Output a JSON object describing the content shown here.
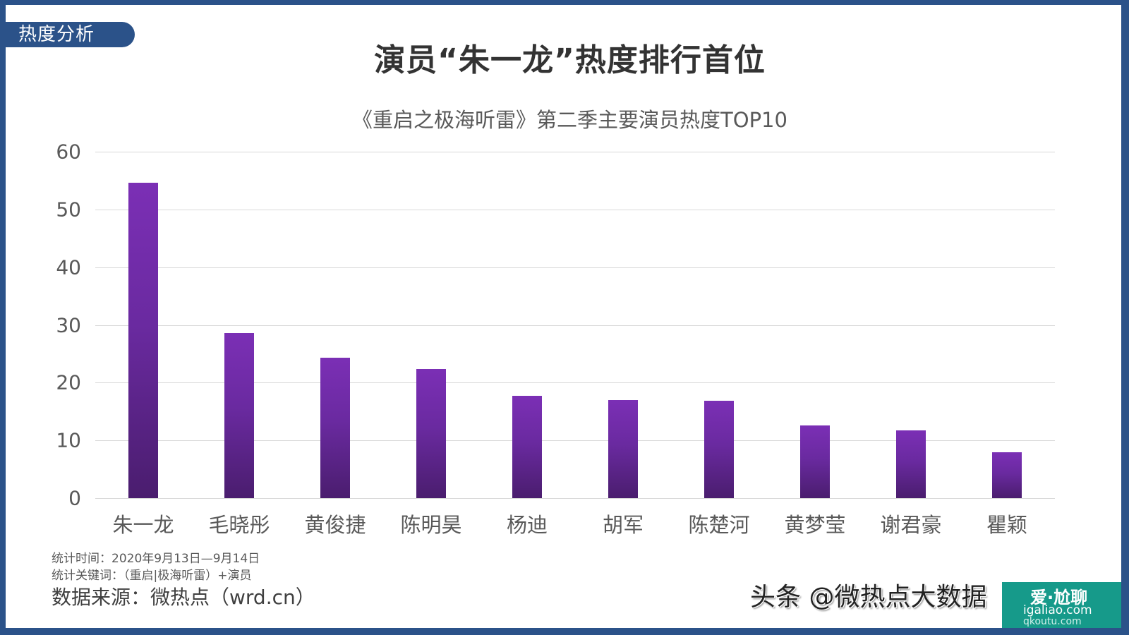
{
  "section_tag": "热度分析",
  "headline": "演员“朱一龙”热度排行首位",
  "chart_data": {
    "type": "bar",
    "title": "《重启之极海听雷》第二季主要演员热度TOP10",
    "xlabel": "",
    "ylabel": "",
    "ylim": [
      0,
      60
    ],
    "yticks": [
      0,
      10,
      20,
      30,
      40,
      50,
      60
    ],
    "grid": true,
    "legend": null,
    "bar_color_top": "#7b2fb5",
    "bar_color_bottom": "#4a1d6e",
    "categories": [
      "朱一龙",
      "毛晓彤",
      "黄俊捷",
      "陈明昊",
      "杨迪",
      "胡军",
      "陈楚河",
      "黄梦莹",
      "谢君豪",
      "瞿颖"
    ],
    "values": [
      54.6,
      28.6,
      24.3,
      22.4,
      17.7,
      17.0,
      16.9,
      12.6,
      11.7,
      7.9
    ]
  },
  "footer": {
    "stat_time": "统计时间：2020年9月13日—9月14日",
    "stat_keywords": "统计关键词：（重启|极海听雷）+演员",
    "source": "数据来源：微热点（wrd.cn）"
  },
  "watermark": {
    "text": "头条 @微热点大数据",
    "site_line1": "爱·尬聊",
    "site_line2": "igaliao.com",
    "site_line3": "qkoutu.com"
  },
  "colors": {
    "frame": "#2b5289",
    "bar": "#7b2fb5",
    "gridline": "#d9d9d9",
    "text": "#595959"
  }
}
